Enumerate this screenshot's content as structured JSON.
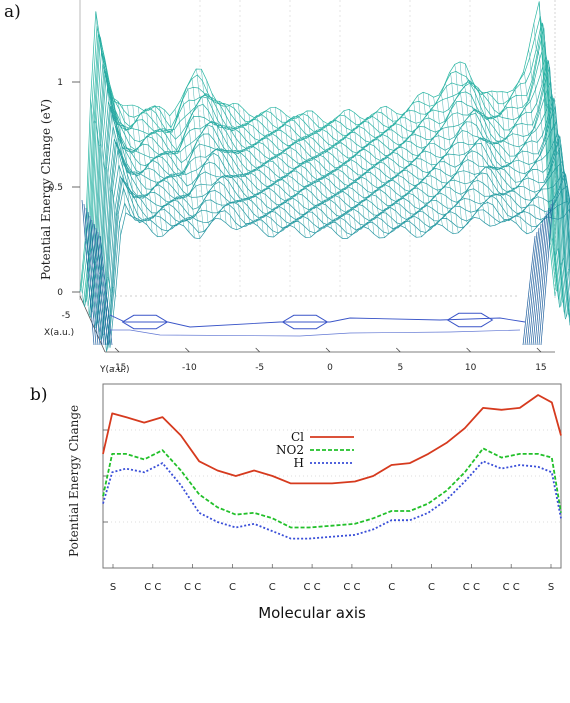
{
  "panel_a_label": "a)",
  "panel_b_label": "b)",
  "chart_data": [
    {
      "type": "surface",
      "panel": "a)",
      "ylabel": "Potential  Energy Change (eV)",
      "x_axis_label": "X(a.u.)",
      "y_axis_label": "Y(a.u.)",
      "z_ticks": [
        "0",
        "0.5",
        "1"
      ],
      "y_ticks": [
        "-15",
        "-10",
        "-5",
        "0",
        "5",
        "10",
        "15"
      ],
      "x_ticks": [
        "-5"
      ],
      "zlim": [
        0,
        1.4
      ],
      "ylim": [
        -16,
        16
      ],
      "profile_y": [
        -16,
        -15.5,
        -15,
        -14,
        -13,
        -12,
        -11,
        -10,
        -9,
        -8,
        -7,
        -6,
        -5,
        -4,
        -3,
        -2,
        -1,
        0,
        1,
        2,
        3,
        4,
        5,
        6,
        7,
        8,
        9,
        10,
        11,
        12,
        13,
        14,
        15,
        15.5,
        16
      ],
      "profile_z": [
        0.0,
        0.55,
        1.35,
        0.95,
        0.85,
        0.9,
        0.88,
        0.82,
        0.98,
        1.05,
        0.95,
        0.88,
        0.86,
        0.86,
        0.85,
        0.86,
        0.84,
        0.83,
        0.83,
        0.84,
        0.85,
        0.85,
        0.86,
        0.88,
        0.92,
        0.95,
        1.05,
        1.08,
        0.96,
        0.92,
        0.98,
        1.05,
        1.4,
        0.6,
        0.0
      ],
      "baseline_z": 0.48,
      "colors": {
        "mesh_top": "#2bb8a4",
        "mesh_bottom": "#1f5f9e",
        "molecule": "#3a55c8"
      }
    },
    {
      "type": "line",
      "panel": "b)",
      "xlabel": "Molecular axis",
      "ylabel": "Potential Energy Change",
      "x_tick_labels": [
        "S",
        "C C",
        "C C",
        "C",
        "C",
        "C C",
        "C C",
        "C",
        "C",
        "C C",
        "C C",
        "S"
      ],
      "ylim": [
        0,
        1.0
      ],
      "grid": true,
      "legend_position": "center",
      "x": [
        0,
        0.02,
        0.05,
        0.09,
        0.13,
        0.17,
        0.21,
        0.25,
        0.29,
        0.33,
        0.37,
        0.41,
        0.45,
        0.5,
        0.55,
        0.59,
        0.63,
        0.67,
        0.71,
        0.75,
        0.79,
        0.83,
        0.87,
        0.91,
        0.95,
        0.98,
        1.0
      ],
      "series": [
        {
          "name": "Cl",
          "color": "#d63a1e",
          "dash": "solid",
          "values": [
            0.62,
            0.84,
            0.82,
            0.79,
            0.82,
            0.72,
            0.58,
            0.53,
            0.5,
            0.53,
            0.5,
            0.46,
            0.46,
            0.46,
            0.47,
            0.5,
            0.56,
            0.57,
            0.62,
            0.68,
            0.76,
            0.87,
            0.86,
            0.87,
            0.94,
            0.9,
            0.72
          ]
        },
        {
          "name": "NO2",
          "color": "#22c02a",
          "dash": "4,2",
          "values": [
            0.39,
            0.62,
            0.62,
            0.59,
            0.64,
            0.53,
            0.4,
            0.33,
            0.29,
            0.3,
            0.27,
            0.22,
            0.22,
            0.23,
            0.24,
            0.27,
            0.31,
            0.31,
            0.35,
            0.42,
            0.52,
            0.65,
            0.6,
            0.62,
            0.62,
            0.6,
            0.3
          ]
        },
        {
          "name": "H",
          "color": "#3a4fd8",
          "dash": "2,2",
          "values": [
            0.35,
            0.52,
            0.54,
            0.52,
            0.57,
            0.45,
            0.3,
            0.25,
            0.22,
            0.24,
            0.2,
            0.16,
            0.16,
            0.17,
            0.18,
            0.21,
            0.26,
            0.26,
            0.3,
            0.37,
            0.47,
            0.58,
            0.54,
            0.56,
            0.55,
            0.52,
            0.27
          ]
        }
      ]
    }
  ]
}
